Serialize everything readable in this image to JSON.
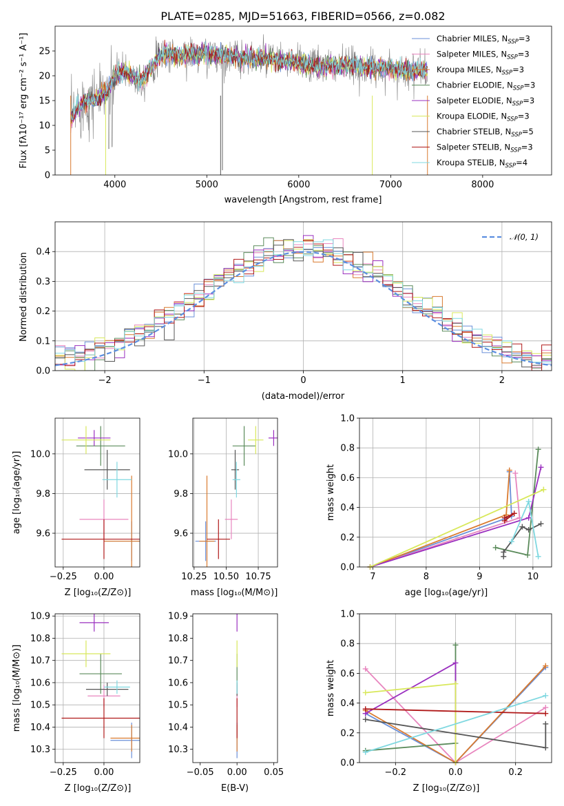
{
  "colors": {
    "chabrier_miles": "#6a8fd8",
    "salpeter_miles": "#e885be",
    "kroupa_miles": "#d97a2f",
    "chabrier_elodie": "#5a8a5a",
    "salpeter_elodie": "#9a2fbf",
    "kroupa_elodie": "#d8e85a",
    "chabrier_stelib": "#555555",
    "salpeter_stelib": "#b01818",
    "kroupa_stelib": "#7fd8e0",
    "normal_curve": "#5b8ee0",
    "spectrum_data": "#7f7f7f"
  },
  "series": [
    {
      "key": "chabrier_miles",
      "label": "Chabrier MILES, N",
      "sub": "SSP",
      "n": "=3"
    },
    {
      "key": "salpeter_miles",
      "label": "Salpeter MILES, N",
      "sub": "SSP",
      "n": "=3"
    },
    {
      "key": "kroupa_miles",
      "label": "Kroupa MILES, N",
      "sub": "SSP",
      "n": "=3"
    },
    {
      "key": "chabrier_elodie",
      "label": "Chabrier ELODIE, N",
      "sub": "SSP",
      "n": "=3"
    },
    {
      "key": "salpeter_elodie",
      "label": "Salpeter ELODIE, N",
      "sub": "SSP",
      "n": "=3"
    },
    {
      "key": "kroupa_elodie",
      "label": "Kroupa ELODIE, N",
      "sub": "SSP",
      "n": "=3"
    },
    {
      "key": "chabrier_stelib",
      "label": "Chabrier STELIB, N",
      "sub": "SSP",
      "n": "=5"
    },
    {
      "key": "salpeter_stelib",
      "label": "Salpeter STELIB, N",
      "sub": "SSP",
      "n": "=3"
    },
    {
      "key": "kroupa_stelib",
      "label": "Kroupa STELIB, N",
      "sub": "SSP",
      "n": "=4"
    }
  ],
  "chart_data": [
    {
      "id": "spectrum",
      "type": "line",
      "title": "PLATE=0285, MJD=51663, FIBERID=0566, z=0.082",
      "xlabel": "wavelength [Angstrom, rest frame]",
      "ylabel": "Flux [fλ10⁻¹⁷ erg cm⁻² s⁻¹ A⁻¹]",
      "xlim": [
        3350,
        8750
      ],
      "ylim": [
        0,
        30
      ],
      "xticks": [
        4000,
        5000,
        6000,
        7000,
        8000
      ],
      "yticks": [
        0,
        5,
        10,
        15,
        20,
        25
      ],
      "continuum": {
        "x": [
          3520,
          3600,
          3700,
          3800,
          3900,
          4000,
          4100,
          4200,
          4300,
          4400,
          4500,
          4600,
          4700,
          4800,
          4900,
          5000,
          5200,
          5400,
          5600,
          5800,
          6000,
          6200,
          6400,
          6600,
          6800,
          7000,
          7200,
          7400
        ],
        "y": [
          11,
          14,
          15,
          15.5,
          16.5,
          20,
          21,
          20,
          19,
          22,
          24,
          24.5,
          24,
          24.5,
          24,
          24.5,
          24,
          23.5,
          23.5,
          23,
          22.5,
          22,
          22,
          22,
          21.5,
          21.5,
          21,
          21
        ]
      },
      "grid": false,
      "legend_position": "right"
    },
    {
      "id": "residuals",
      "type": "line",
      "xlabel": "(data-model)/error",
      "ylabel": "Normed distribution",
      "xlim": [
        -2.5,
        2.5
      ],
      "ylim": [
        0,
        0.5
      ],
      "xticks": [
        -2,
        -1,
        0,
        1,
        2
      ],
      "yticks": [
        0.0,
        0.1,
        0.2,
        0.3,
        0.4
      ],
      "grid": true,
      "legend": "𝒩(0, 1)",
      "legend_position": "top-right",
      "normal_mean": 0,
      "normal_sigma": 1,
      "bin_width": 0.1
    },
    {
      "id": "age-vs-z",
      "type": "scatter",
      "xlabel": "Z [log₁₀(Z/Z⊙)]",
      "ylabel": "age  [log₁₀(age/yr)]",
      "xlim": [
        -0.3,
        0.22
      ],
      "ylim": [
        9.43,
        10.18
      ],
      "xticks": [
        -0.25,
        0.0
      ],
      "yticks": [
        9.6,
        9.8,
        10.0
      ],
      "grid": true,
      "points": [
        {
          "s": "chabrier_miles",
          "x": 0.17,
          "y": 9.56,
          "xerr": 0.17,
          "yerr": 0.1
        },
        {
          "s": "salpeter_miles",
          "x": 0.0,
          "y": 9.67,
          "xerr": 0.15,
          "yerr": 0.1
        },
        {
          "s": "kroupa_miles",
          "x": 0.17,
          "y": 9.56,
          "xerr": 0.17,
          "yerr": 0.33
        },
        {
          "s": "chabrier_elodie",
          "x": -0.02,
          "y": 10.04,
          "xerr": 0.15,
          "yerr": 0.1
        },
        {
          "s": "salpeter_elodie",
          "x": -0.06,
          "y": 10.08,
          "xerr": 0.1,
          "yerr": 0.04
        },
        {
          "s": "kroupa_elodie",
          "x": -0.11,
          "y": 10.07,
          "xerr": 0.15,
          "yerr": 0.07
        },
        {
          "s": "chabrier_stelib",
          "x": 0.02,
          "y": 9.92,
          "xerr": 0.14,
          "yerr": 0.1
        },
        {
          "s": "salpeter_stelib",
          "x": 0.0,
          "y": 9.57,
          "xerr": 0.26,
          "yerr": 0.1
        },
        {
          "s": "kroupa_stelib",
          "x": 0.08,
          "y": 9.87,
          "xerr": 0.09,
          "yerr": 0.09
        }
      ]
    },
    {
      "id": "age-vs-mass",
      "type": "scatter",
      "xlabel": "mass [log₁₀(M/M⊙)]",
      "ylabel": "",
      "xlim": [
        10.24,
        10.9
      ],
      "ylim": [
        9.43,
        10.18
      ],
      "xticks": [
        10.25,
        10.5,
        10.75
      ],
      "yticks": [
        9.6,
        9.8,
        10.0
      ],
      "grid": true,
      "points": [
        {
          "s": "chabrier_miles",
          "x": 10.34,
          "y": 9.56,
          "xerr": 0.08,
          "yerr": 0.1
        },
        {
          "s": "salpeter_miles",
          "x": 10.54,
          "y": 9.67,
          "xerr": 0.05,
          "yerr": 0.1
        },
        {
          "s": "kroupa_miles",
          "x": 10.35,
          "y": 9.56,
          "xerr": 0.06,
          "yerr": 0.33
        },
        {
          "s": "chabrier_elodie",
          "x": 10.64,
          "y": 10.04,
          "xerr": 0.09,
          "yerr": 0.1
        },
        {
          "s": "salpeter_elodie",
          "x": 10.87,
          "y": 10.08,
          "xerr": 0.04,
          "yerr": 0.04
        },
        {
          "s": "kroupa_elodie",
          "x": 10.73,
          "y": 10.07,
          "xerr": 0.06,
          "yerr": 0.07
        },
        {
          "s": "chabrier_stelib",
          "x": 10.57,
          "y": 9.92,
          "xerr": 0.03,
          "yerr": 0.1
        },
        {
          "s": "salpeter_stelib",
          "x": 10.44,
          "y": 9.57,
          "xerr": 0.09,
          "yerr": 0.1
        },
        {
          "s": "kroupa_stelib",
          "x": 10.58,
          "y": 9.87,
          "xerr": 0.03,
          "yerr": 0.09
        }
      ]
    },
    {
      "id": "weight-vs-age",
      "type": "line",
      "xlabel": "age  [log₁₀(age/yr)]",
      "ylabel": "mass weight",
      "xlim": [
        6.75,
        10.35
      ],
      "ylim": [
        0,
        1
      ],
      "xticks": [
        7,
        8,
        9,
        10
      ],
      "yticks": [
        0.0,
        0.2,
        0.4,
        0.6,
        0.8,
        1.0
      ],
      "grid": true,
      "lines": [
        {
          "s": "chabrier_miles",
          "x": [
            6.95,
            9.6,
            9.56
          ],
          "y": [
            0.0,
            0.34,
            0.64
          ]
        },
        {
          "s": "salpeter_miles",
          "x": [
            6.95,
            9.75,
            9.67
          ],
          "y": [
            0.0,
            0.33,
            0.63
          ]
        },
        {
          "s": "kroupa_miles",
          "x": [
            6.95,
            9.5,
            9.56
          ],
          "y": [
            0.0,
            0.35,
            0.65
          ]
        },
        {
          "s": "chabrier_elodie",
          "x": [
            9.3,
            9.9,
            10.1
          ],
          "y": [
            0.13,
            0.08,
            0.79
          ]
        },
        {
          "s": "salpeter_elodie",
          "x": [
            6.95,
            9.92,
            10.15
          ],
          "y": [
            0.0,
            0.33,
            0.67
          ]
        },
        {
          "s": "kroupa_elodie",
          "x": [
            6.95,
            10.2,
            10.2
          ],
          "y": [
            0.0,
            0.52,
            0.52
          ]
        },
        {
          "s": "chabrier_stelib",
          "x": [
            9.45,
            9.45,
            9.8,
            9.92,
            10.15
          ],
          "y": [
            0.07,
            0.1,
            0.27,
            0.25,
            0.29
          ]
        },
        {
          "s": "salpeter_stelib",
          "x": [
            9.47,
            9.65,
            9.47
          ],
          "y": [
            0.31,
            0.36,
            0.33
          ]
        },
        {
          "s": "kroupa_stelib",
          "x": [
            9.6,
            9.92,
            10.1
          ],
          "y": [
            0.17,
            0.44,
            0.07
          ]
        }
      ]
    },
    {
      "id": "mass-vs-z",
      "type": "scatter",
      "xlabel": "Z [log₁₀(Z/Z⊙)]",
      "ylabel": "mass [log₁₀(M/M⊙)]",
      "xlim": [
        -0.3,
        0.22
      ],
      "ylim": [
        10.24,
        10.91
      ],
      "xticks": [
        -0.25,
        0.0
      ],
      "yticks": [
        10.3,
        10.4,
        10.5,
        10.6,
        10.7,
        10.8,
        10.9
      ],
      "grid": true,
      "points": [
        {
          "s": "chabrier_miles",
          "x": 0.17,
          "y": 10.34,
          "xerr": 0.13,
          "yerr": 0.08
        },
        {
          "s": "salpeter_miles",
          "x": 0.0,
          "y": 10.54,
          "xerr": 0.1,
          "yerr": 0.05
        },
        {
          "s": "kroupa_miles",
          "x": 0.17,
          "y": 10.35,
          "xerr": 0.13,
          "yerr": 0.06
        },
        {
          "s": "chabrier_elodie",
          "x": -0.02,
          "y": 10.64,
          "xerr": 0.13,
          "yerr": 0.09
        },
        {
          "s": "salpeter_elodie",
          "x": -0.06,
          "y": 10.87,
          "xerr": 0.09,
          "yerr": 0.04
        },
        {
          "s": "kroupa_elodie",
          "x": -0.11,
          "y": 10.73,
          "xerr": 0.15,
          "yerr": 0.06
        },
        {
          "s": "chabrier_stelib",
          "x": 0.02,
          "y": 10.57,
          "xerr": 0.13,
          "yerr": 0.03
        },
        {
          "s": "salpeter_stelib",
          "x": 0.0,
          "y": 10.44,
          "xerr": 0.26,
          "yerr": 0.09
        },
        {
          "s": "kroupa_stelib",
          "x": 0.08,
          "y": 10.58,
          "xerr": 0.08,
          "yerr": 0.03
        }
      ]
    },
    {
      "id": "mass-vs-ebv",
      "type": "scatter",
      "xlabel": "E(B-V)",
      "ylabel": "",
      "xlim": [
        -0.06,
        0.055
      ],
      "ylim": [
        10.24,
        10.91
      ],
      "xticks": [
        -0.05,
        0.0,
        0.05
      ],
      "yticks": [
        10.3,
        10.4,
        10.5,
        10.6,
        10.7,
        10.8,
        10.9
      ],
      "grid": false,
      "points": [
        {
          "s": "chabrier_miles",
          "x": 0.0,
          "y": 10.34,
          "xerr": 0.0,
          "yerr": 0.08
        },
        {
          "s": "salpeter_miles",
          "x": 0.0,
          "y": 10.54,
          "xerr": 0.0,
          "yerr": 0.05
        },
        {
          "s": "kroupa_miles",
          "x": 0.0,
          "y": 10.35,
          "xerr": 0.0,
          "yerr": 0.06
        },
        {
          "s": "chabrier_elodie",
          "x": 0.0,
          "y": 10.64,
          "xerr": 0.0,
          "yerr": 0.09
        },
        {
          "s": "salpeter_elodie",
          "x": 0.0,
          "y": 10.87,
          "xerr": 0.0,
          "yerr": 0.04
        },
        {
          "s": "kroupa_elodie",
          "x": 0.0,
          "y": 10.73,
          "xerr": 0.0,
          "yerr": 0.06
        },
        {
          "s": "chabrier_stelib",
          "x": 0.0,
          "y": 10.57,
          "xerr": 0.0,
          "yerr": 0.03
        },
        {
          "s": "salpeter_stelib",
          "x": 0.0,
          "y": 10.44,
          "xerr": 0.0,
          "yerr": 0.09
        },
        {
          "s": "kroupa_stelib",
          "x": 0.0,
          "y": 10.58,
          "xerr": 0.0,
          "yerr": 0.03
        }
      ]
    },
    {
      "id": "weight-vs-z",
      "type": "line",
      "xlabel": "Z [log₁₀(Z/Z⊙)]",
      "ylabel": "mass weight",
      "xlim": [
        -0.32,
        0.32
      ],
      "ylim": [
        0,
        1
      ],
      "xticks": [
        -0.2,
        0.0,
        0.2
      ],
      "yticks": [
        0.0,
        0.2,
        0.4,
        0.6,
        0.8,
        1.0
      ],
      "grid": true,
      "lines": [
        {
          "s": "chabrier_miles",
          "x": [
            -0.3,
            0.0,
            0.3
          ],
          "y": [
            0.33,
            0.0,
            0.64
          ]
        },
        {
          "s": "salpeter_miles",
          "x": [
            -0.3,
            0.0,
            0.3
          ],
          "y": [
            0.63,
            0.0,
            0.37
          ]
        },
        {
          "s": "kroupa_miles",
          "x": [
            -0.3,
            0.0,
            0.3
          ],
          "y": [
            0.35,
            0.0,
            0.65
          ]
        },
        {
          "s": "chabrier_elodie",
          "x": [
            -0.3,
            0.0,
            0.0
          ],
          "y": [
            0.08,
            0.13,
            0.79
          ]
        },
        {
          "s": "salpeter_elodie",
          "x": [
            -0.3,
            0.0,
            0.0
          ],
          "y": [
            0.33,
            0.67,
            0.0
          ]
        },
        {
          "s": "kroupa_elodie",
          "x": [
            -0.3,
            0.0,
            0.0
          ],
          "y": [
            0.47,
            0.53,
            0.0
          ]
        },
        {
          "s": "chabrier_stelib",
          "x": [
            -0.3,
            0.3,
            0.3
          ],
          "y": [
            0.29,
            0.1,
            0.26
          ]
        },
        {
          "s": "salpeter_stelib",
          "x": [
            -0.3,
            0.3
          ],
          "y": [
            0.36,
            0.33
          ]
        },
        {
          "s": "kroupa_stelib",
          "x": [
            -0.3,
            0.3
          ],
          "y": [
            0.07,
            0.45
          ]
        }
      ]
    }
  ]
}
